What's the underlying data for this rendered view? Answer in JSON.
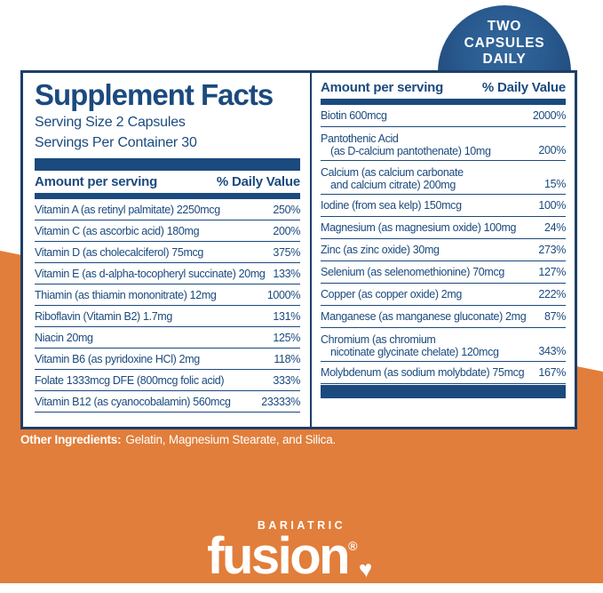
{
  "colors": {
    "navy": "#1b4a7e",
    "navy_border": "#1d3e68",
    "badge_blue": "#2a5c92",
    "orange": "#e17e3b",
    "white": "#ffffff"
  },
  "badge": {
    "line1": "TWO",
    "line2": "CAPSULES",
    "line3": "DAILY"
  },
  "supplement_facts": {
    "title": "Supplement Facts",
    "serving_size": "Serving Size 2 Capsules",
    "servings_per_container": "Servings Per Container 30",
    "header": {
      "amount": "Amount per serving",
      "daily_value": "% Daily Value"
    },
    "left_rows": [
      {
        "name": "Vitamin A (as retinyl palmitate) 2250mcg",
        "dv": "250%"
      },
      {
        "name": "Vitamin C (as ascorbic acid) 180mg",
        "dv": "200%"
      },
      {
        "name": "Vitamin D (as cholecalciferol) 75mcg",
        "dv": "375%"
      },
      {
        "name": "Vitamin E (as d-alpha-tocopheryl succinate) 20mg",
        "dv": "133%"
      },
      {
        "name": "Thiamin (as thiamin mononitrate) 12mg",
        "dv": "1000%"
      },
      {
        "name": "Riboflavin (Vitamin B2) 1.7mg",
        "dv": "131%"
      },
      {
        "name": "Niacin 20mg",
        "dv": "125%"
      },
      {
        "name": "Vitamin B6 (as pyridoxine HCl) 2mg",
        "dv": "118%"
      },
      {
        "name": "Folate 1333mcg DFE (800mcg folic acid)",
        "dv": "333%"
      },
      {
        "name": "Vitamin B12 (as cyanocobalamin) 560mcg",
        "dv": "23333%"
      }
    ],
    "right_rows": [
      {
        "name": "Biotin 600mcg",
        "dv": "2000%"
      },
      {
        "name": "Pantothenic Acid",
        "name2": "(as D-calcium pantothenate) 10mg",
        "dv": "200%"
      },
      {
        "name": "Calcium (as calcium carbonate",
        "name2": "and calcium citrate) 200mg",
        "dv": "15%"
      },
      {
        "name": "Iodine (from sea kelp) 150mcg",
        "dv": "100%"
      },
      {
        "name": "Magnesium (as magnesium oxide) 100mg",
        "dv": "24%"
      },
      {
        "name": "Zinc (as zinc oxide) 30mg",
        "dv": "273%"
      },
      {
        "name": "Selenium (as selenomethionine) 70mcg",
        "dv": "127%"
      },
      {
        "name": "Copper (as copper oxide) 2mg",
        "dv": "222%"
      },
      {
        "name": "Manganese (as manganese gluconate) 2mg",
        "dv": "87%"
      },
      {
        "name": "Chromium (as chromium",
        "name2": "nicotinate glycinate chelate) 120mcg",
        "dv": "343%"
      },
      {
        "name": "Molybdenum (as sodium molybdate) 75mcg",
        "dv": "167%"
      }
    ]
  },
  "other_ingredients": {
    "label": "Other Ingredients:",
    "text": "Gelatin, Magnesium Stearate, and Silica."
  },
  "logo": {
    "brand_top": "BARIATRIC",
    "brand_main": "fusion",
    "registered": "®",
    "heart_icon": "♥"
  }
}
